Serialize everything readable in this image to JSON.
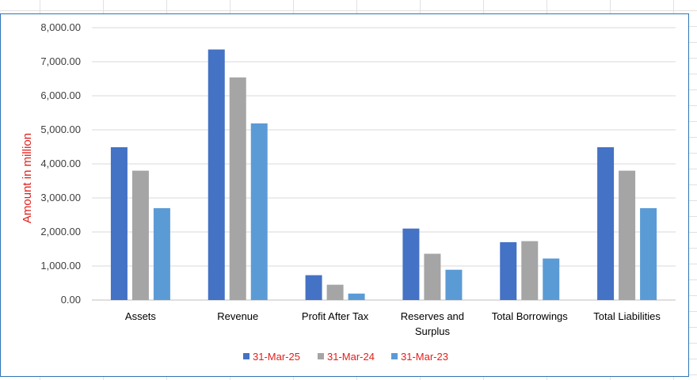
{
  "chart_data": {
    "type": "bar",
    "title": "",
    "xlabel": "",
    "ylabel": "Amount in million",
    "ylim": [
      0,
      8000
    ],
    "yticks": [
      "0.00",
      "1,000.00",
      "2,000.00",
      "3,000.00",
      "4,000.00",
      "5,000.00",
      "6,000.00",
      "7,000.00",
      "8,000.00"
    ],
    "categories": [
      "Assets",
      "Revenue",
      "Profit After Tax",
      "Reserves and Surplus",
      "Total Borrowings",
      "Total Liabilities"
    ],
    "series": [
      {
        "name": "31-Mar-25",
        "color": "#4472c4",
        "values": [
          4490,
          7360,
          730,
          2100,
          1700,
          4490
        ]
      },
      {
        "name": "31-Mar-24",
        "color": "#a5a5a5",
        "values": [
          3800,
          6540,
          450,
          1360,
          1730,
          3800
        ]
      },
      {
        "name": "31-Mar-23",
        "color": "#5b9bd5",
        "values": [
          2700,
          5190,
          190,
          890,
          1220,
          2700
        ]
      }
    ],
    "grid": true,
    "legend_position": "bottom"
  }
}
